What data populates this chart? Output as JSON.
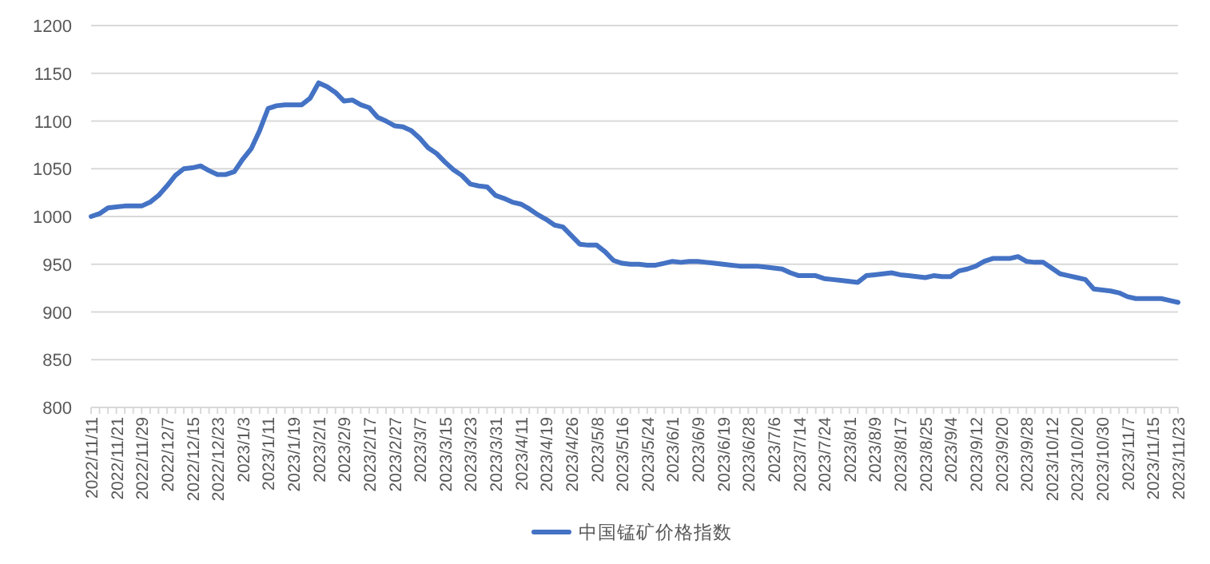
{
  "chart_data": {
    "type": "line",
    "categories": [
      "2022/11/11",
      null,
      null,
      "2022/11/21",
      null,
      null,
      "2022/11/29",
      null,
      null,
      "2022/12/7",
      null,
      null,
      "2022/12/15",
      null,
      null,
      "2022/12/23",
      null,
      null,
      "2023/1/3",
      null,
      null,
      "2023/1/11",
      null,
      null,
      "2023/1/19",
      null,
      null,
      "2023/2/1",
      null,
      null,
      "2023/2/9",
      null,
      null,
      "2023/2/17",
      null,
      null,
      "2023/2/27",
      null,
      null,
      "2023/3/7",
      null,
      null,
      "2023/3/15",
      null,
      null,
      "2023/3/23",
      null,
      null,
      "2023/3/31",
      null,
      null,
      "2023/4/11",
      null,
      null,
      "2023/4/19",
      null,
      null,
      "2023/4/26",
      null,
      null,
      "2023/5/8",
      null,
      null,
      "2023/5/16",
      null,
      null,
      "2023/5/24",
      null,
      null,
      "2023/6/1",
      null,
      null,
      "2023/6/9",
      null,
      null,
      "2023/6/19",
      null,
      null,
      "2023/6/28",
      null,
      null,
      "2023/7/6",
      null,
      null,
      "2023/7/14",
      null,
      null,
      "2023/7/24",
      null,
      null,
      "2023/8/1",
      null,
      null,
      "2023/8/9",
      null,
      null,
      "2023/8/17",
      null,
      null,
      "2023/8/25",
      null,
      null,
      "2023/9/4",
      null,
      null,
      "2023/9/12",
      null,
      null,
      "2023/9/20",
      null,
      null,
      "2023/9/28",
      null,
      null,
      "2023/10/12",
      null,
      null,
      "2023/10/20",
      null,
      null,
      "2023/10/30",
      null,
      null,
      "2023/11/7",
      null,
      null,
      "2023/11/15",
      null,
      null,
      "2023/11/23"
    ],
    "series": [
      {
        "name": "中国锰矿价格指数",
        "color": "#4472c4",
        "values": [
          1000,
          1003,
          1009,
          1010,
          1011,
          1011,
          1011,
          1015,
          1022,
          1032,
          1043,
          1050,
          1051,
          1053,
          1048,
          1044,
          1044,
          1047,
          1060,
          1071,
          1090,
          1113,
          1116,
          1117,
          1117,
          1117,
          1124,
          1140,
          1136,
          1130,
          1121,
          1122,
          1117,
          1114,
          1104,
          1100,
          1095,
          1094,
          1090,
          1082,
          1072,
          1066,
          1057,
          1049,
          1043,
          1034,
          1032,
          1031,
          1022,
          1019,
          1015,
          1013,
          1008,
          1002,
          997,
          991,
          989,
          980,
          971,
          970,
          970,
          963,
          954,
          951,
          950,
          950,
          949,
          949,
          951,
          953,
          952,
          953,
          953,
          952,
          951,
          950,
          949,
          948,
          948,
          948,
          947,
          946,
          945,
          941,
          938,
          938,
          938,
          935,
          934,
          933,
          932,
          931,
          938,
          939,
          940,
          941,
          939,
          938,
          937,
          936,
          938,
          937,
          937,
          943,
          945,
          948,
          953,
          956,
          956,
          956,
          958,
          953,
          952,
          952,
          946,
          940,
          938,
          936,
          934,
          924,
          923,
          922,
          920,
          916,
          914,
          914,
          914,
          914,
          912,
          910
        ]
      }
    ],
    "ylim": [
      800,
      1200
    ],
    "yticks": [
      800,
      850,
      900,
      950,
      1000,
      1050,
      1100,
      1150,
      1200
    ],
    "grid": "y",
    "legend": "bottom"
  }
}
